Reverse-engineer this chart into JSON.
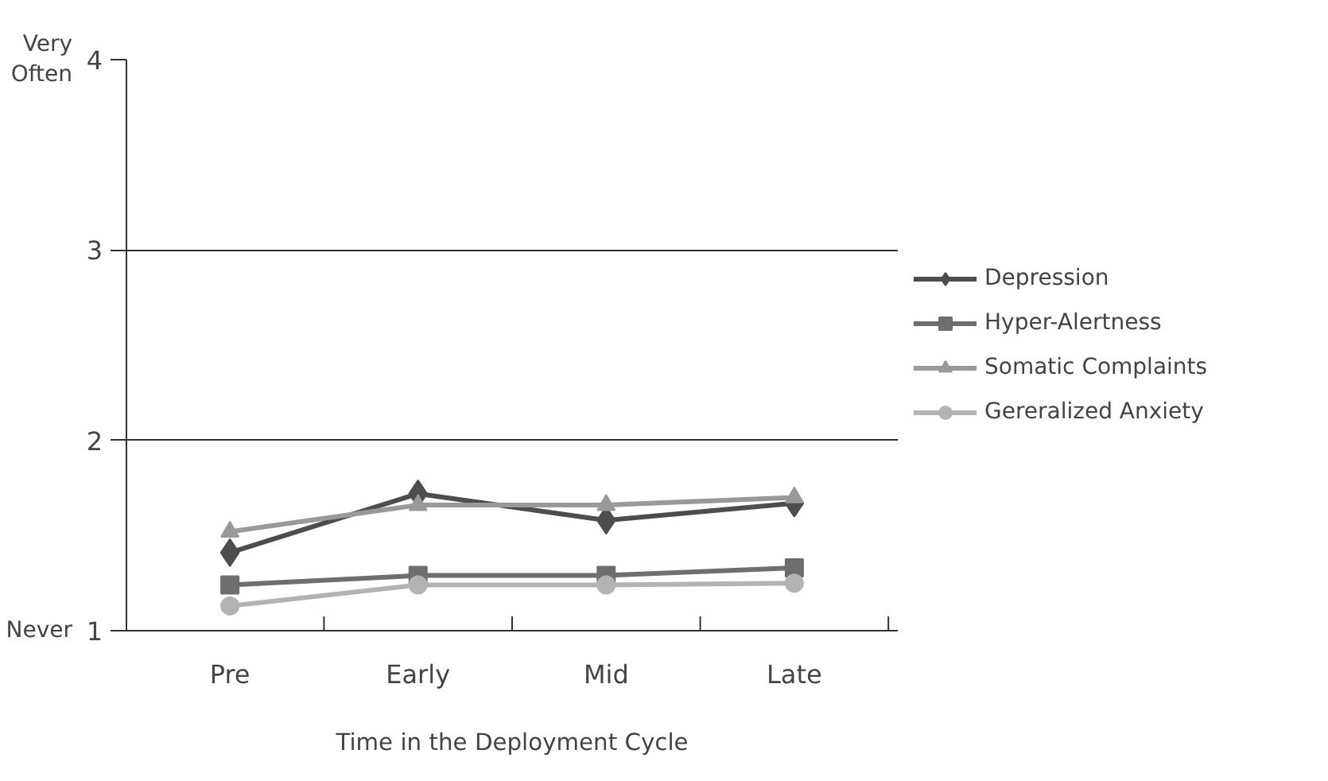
{
  "chart_data": {
    "type": "line",
    "xlabel": "Time in the Deployment Cycle",
    "categories": [
      "Pre",
      "Early",
      "Mid",
      "Late"
    ],
    "ylim": [
      1,
      4
    ],
    "yticks": [
      1,
      2,
      3,
      4
    ],
    "grid": "y",
    "legend": "right",
    "annotations": [
      "Very Often",
      "Never"
    ],
    "series": [
      {
        "name": "Depression",
        "color": "#4d4d4d",
        "marker": "diamond",
        "values": [
          1.41,
          1.72,
          1.58,
          1.67
        ]
      },
      {
        "name": "Hyper-Alertness",
        "color": "#6e6e6e",
        "marker": "square",
        "values": [
          1.24,
          1.29,
          1.29,
          1.33
        ]
      },
      {
        "name": "Somatic Complaints",
        "color": "#999999",
        "marker": "triangle",
        "values": [
          1.52,
          1.66,
          1.66,
          1.7
        ]
      },
      {
        "name": "Gereralized Anxiety",
        "color": "#b3b3b3",
        "marker": "circle",
        "values": [
          1.13,
          1.24,
          1.24,
          1.25
        ]
      }
    ]
  }
}
